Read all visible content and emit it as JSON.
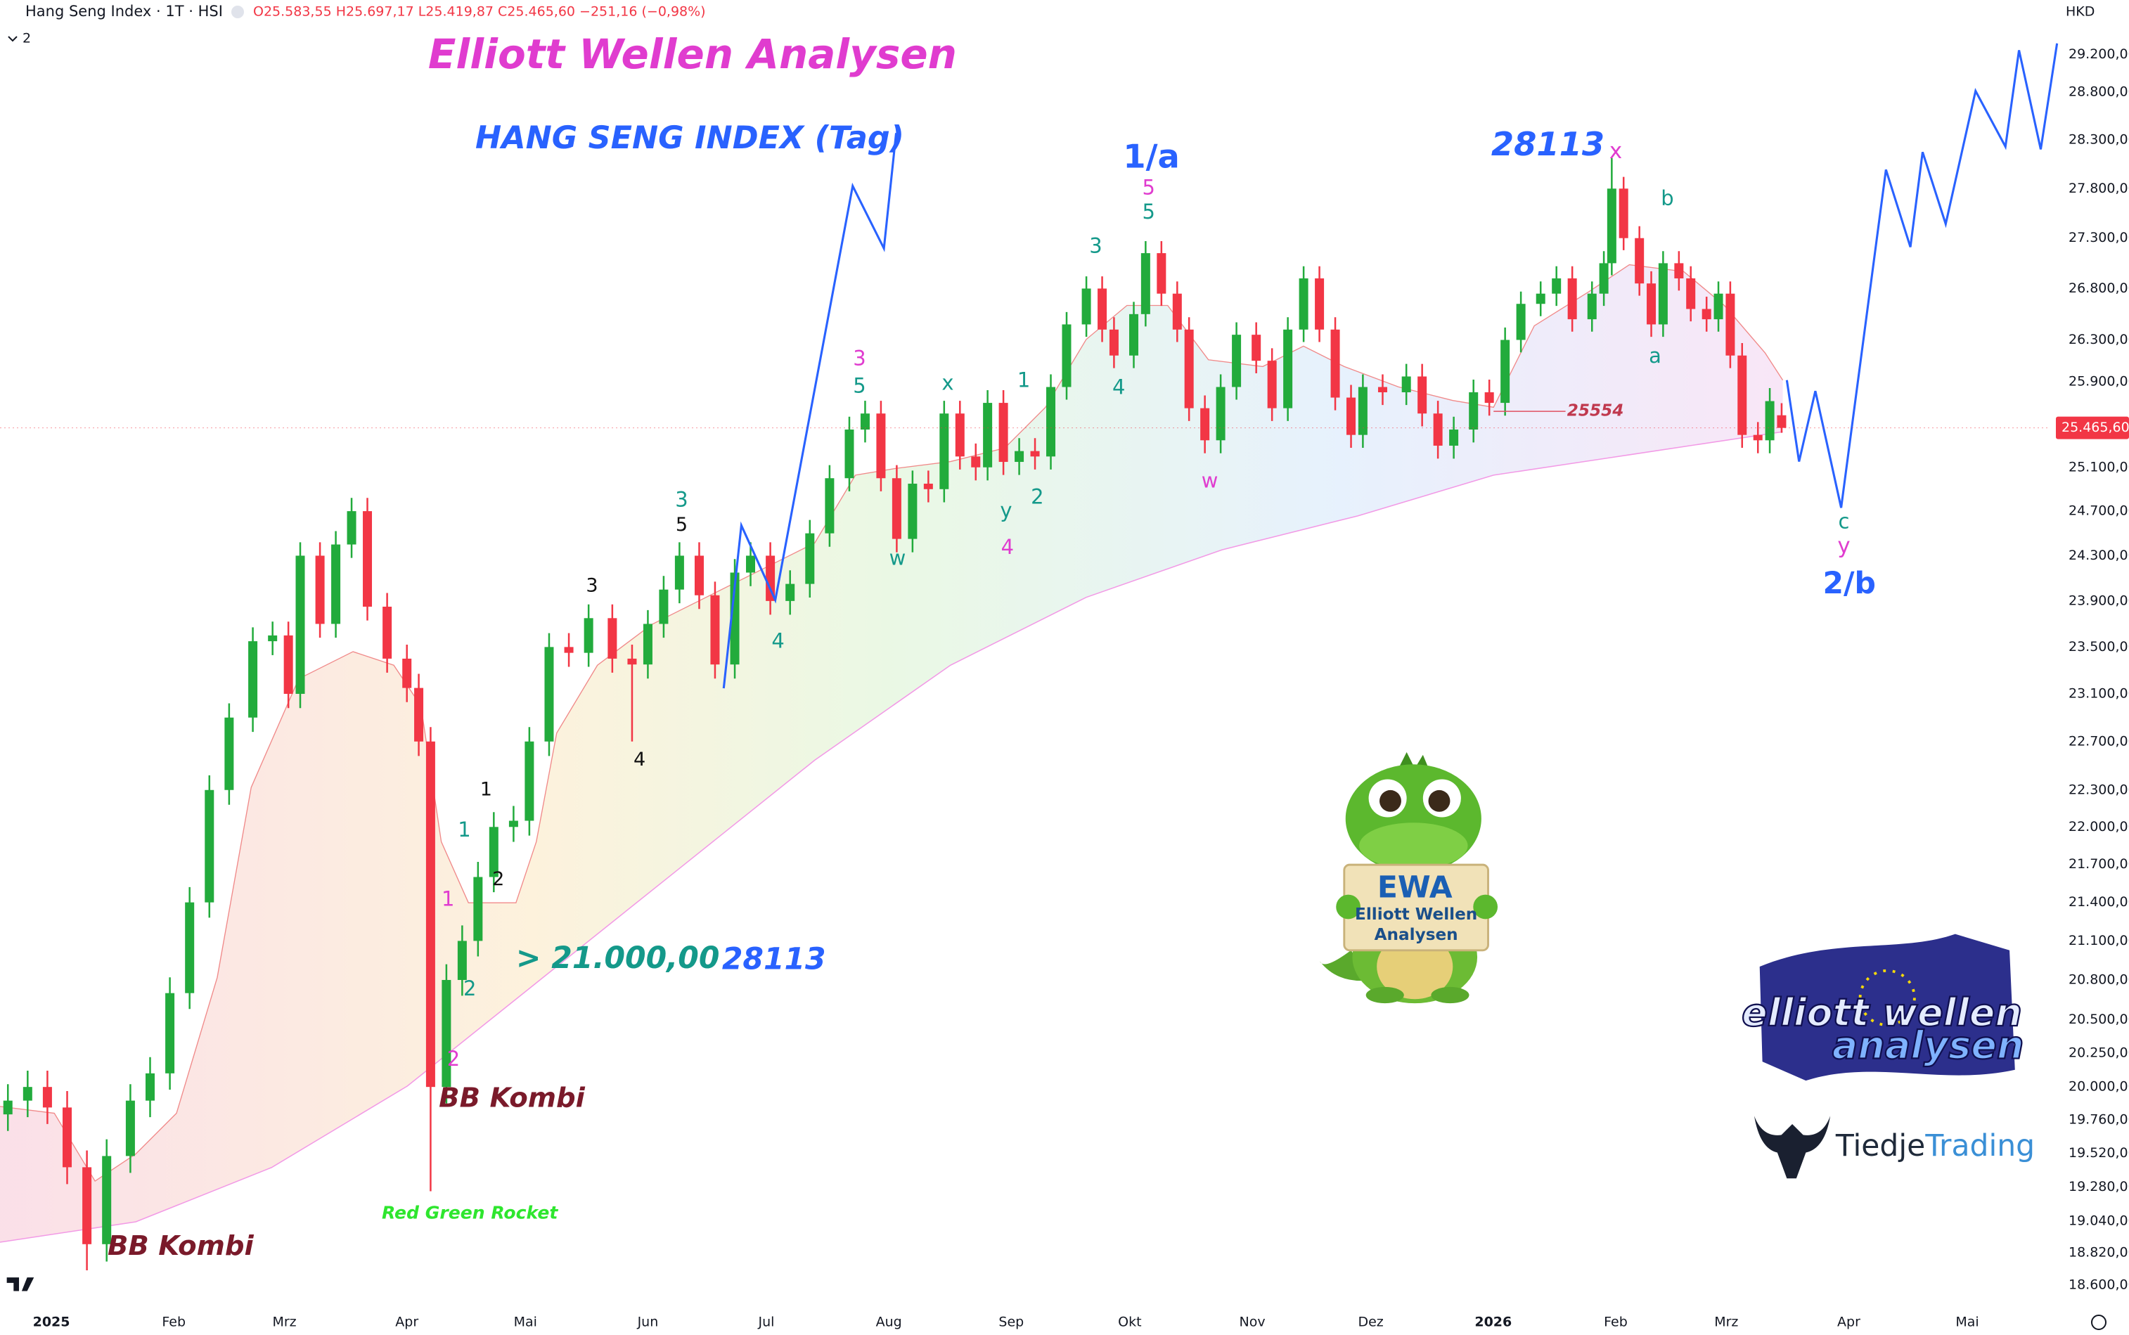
{
  "header": {
    "symbol": "Hang Seng Index · 1T · HSI",
    "ohlc": "O25.583,55 H25.697,17 L25.419,87 C25.465,60 −251,16 (−0,98%)",
    "currency": "HKD",
    "indicators": "2"
  },
  "chart_data": {
    "type": "candlestick",
    "x": [
      -11,
      -6,
      -1,
      4,
      9,
      14,
      20,
      25,
      30,
      35,
      40,
      45,
      51,
      56,
      60,
      63,
      68,
      72,
      76,
      80,
      85,
      90,
      93,
      96,
      100,
      104,
      108,
      112,
      117,
      121,
      126,
      131,
      136,
      142,
      147,
      151,
      155,
      159,
      164,
      168,
      173,
      177,
      182,
      187,
      192,
      197,
      202,
      206,
      210,
      214,
      218,
      222,
      226,
      230,
      234,
      237,
      241,
      245,
      249,
      253,
      257,
      262,
      266,
      269,
      274,
      277,
      281,
      285,
      288,
      292,
      296,
      300,
      305,
      309,
      313,
      317,
      321,
      325,
      329,
      332,
      337,
      343,
      347,
      351,
      355,
      360,
      364,
      368,
      372,
      377,
      381,
      385,
      390,
      393,
      395,
      398,
      402,
      405,
      408,
      412,
      415,
      419,
      422,
      425,
      428,
      432,
      435,
      438
    ],
    "open": [
      19800,
      19900,
      20000,
      19850,
      19420,
      18880,
      19500,
      19900,
      20100,
      20700,
      21400,
      22300,
      22900,
      23550,
      23600,
      23100,
      24300,
      23700,
      24400,
      24700,
      23850,
      23400,
      23150,
      22700,
      20000,
      20800,
      21100,
      21600,
      22000,
      22050,
      22700,
      23500,
      23450,
      23750,
      23400,
      23350,
      23700,
      24000,
      24300,
      23950,
      23350,
      24150,
      24300,
      23900,
      24050,
      24500,
      25000,
      25450,
      25600,
      25000,
      24450,
      24950,
      24900,
      25600,
      25200,
      25100,
      25700,
      25150,
      25250,
      25200,
      25850,
      26450,
      26800,
      26400,
      26150,
      26550,
      27150,
      26750,
      26400,
      25650,
      25350,
      25850,
      26350,
      26100,
      25650,
      26400,
      26900,
      26400,
      25750,
      25400,
      25850,
      25800,
      25950,
      25600,
      25300,
      25450,
      25800,
      25700,
      26300,
      26650,
      26750,
      26900,
      26500,
      26750,
      27050,
      27800,
      27300,
      26850,
      26450,
      27050,
      26900,
      26600,
      26500,
      26750,
      26150,
      25400,
      25350,
      25583.55
    ],
    "high": [
      20020,
      20120,
      20120,
      19970,
      19540,
      19620,
      20020,
      20220,
      20820,
      21520,
      22420,
      23020,
      23670,
      23720,
      23720,
      24420,
      24420,
      24520,
      24820,
      24820,
      23970,
      23520,
      23270,
      22820,
      20920,
      21220,
      21720,
      22120,
      22170,
      22820,
      23620,
      23620,
      23870,
      23870,
      23520,
      23820,
      24120,
      24420,
      24420,
      24070,
      24270,
      24420,
      24420,
      24170,
      24620,
      25120,
      25570,
      25720,
      25720,
      25120,
      25070,
      25070,
      25720,
      25720,
      25320,
      25820,
      25820,
      25370,
      25370,
      25970,
      26570,
      26920,
      26920,
      26520,
      26670,
      27270,
      27270,
      26870,
      26520,
      25770,
      25970,
      26470,
      26470,
      26220,
      26520,
      27020,
      27020,
      26520,
      25870,
      25970,
      25970,
      26070,
      26070,
      25720,
      25570,
      25920,
      25920,
      26420,
      26770,
      26870,
      27020,
      27020,
      26870,
      27170,
      28113,
      27920,
      27420,
      26970,
      27170,
      27170,
      27020,
      26720,
      26870,
      26870,
      26270,
      25520,
      25840,
      25697.17
    ],
    "low": [
      19680,
      19780,
      19730,
      19300,
      18700,
      18760,
      19380,
      19780,
      19980,
      20580,
      21280,
      22180,
      22780,
      23430,
      22980,
      22980,
      23580,
      23580,
      24280,
      23730,
      23280,
      23030,
      22580,
      19250,
      19880,
      20680,
      20980,
      21480,
      21880,
      21930,
      22580,
      23330,
      23330,
      23280,
      22700,
      23230,
      23580,
      23880,
      23830,
      23230,
      23230,
      24030,
      23780,
      23780,
      23930,
      24380,
      24880,
      25330,
      24880,
      24330,
      24330,
      24780,
      24780,
      25080,
      24980,
      24980,
      25030,
      25030,
      25080,
      25080,
      25730,
      26330,
      26280,
      26030,
      26030,
      26430,
      26630,
      26280,
      25530,
      25230,
      25230,
      25730,
      25980,
      25530,
      25530,
      26280,
      26280,
      25630,
      25280,
      25280,
      25680,
      25680,
      25480,
      25180,
      25180,
      25330,
      25580,
      25580,
      26180,
      26530,
      26630,
      26380,
      26380,
      26630,
      26930,
      27180,
      26730,
      26330,
      26330,
      26780,
      26480,
      26380,
      26380,
      26030,
      25280,
      25230,
      25230,
      25419.87
    ],
    "close": [
      19900,
      20000,
      19850,
      19420,
      18880,
      19500,
      19900,
      20100,
      20700,
      21400,
      22300,
      22900,
      23550,
      23600,
      23100,
      24300,
      23700,
      24400,
      24700,
      23850,
      23400,
      23150,
      22700,
      20000,
      20800,
      21100,
      21600,
      22000,
      22050,
      22700,
      23500,
      23450,
      23750,
      23400,
      23350,
      23700,
      24000,
      24300,
      23950,
      23350,
      24150,
      24300,
      23900,
      24050,
      24500,
      25000,
      25450,
      25600,
      25000,
      24450,
      24950,
      24900,
      25600,
      25200,
      25100,
      25700,
      25150,
      25250,
      25200,
      25850,
      26450,
      26800,
      26400,
      26150,
      26550,
      27150,
      26750,
      26400,
      25650,
      25350,
      25850,
      26350,
      26100,
      25650,
      26400,
      26900,
      26400,
      25750,
      25400,
      25850,
      25800,
      25950,
      25600,
      25300,
      25450,
      25800,
      25700,
      26300,
      26650,
      26750,
      26900,
      26500,
      26750,
      27050,
      27800,
      27300,
      26850,
      26450,
      27050,
      26900,
      26600,
      26500,
      26750,
      26150,
      25400,
      25350,
      25716.76,
      25465.6
    ],
    "up_color": "#22ab3c",
    "down_color": "#f23645",
    "xlim": [
      -13,
      506
    ],
    "xticks": [
      {
        "value": 0,
        "label": "2025"
      },
      {
        "value": 31,
        "label": "Feb"
      },
      {
        "value": 59,
        "label": "Mrz"
      },
      {
        "value": 90,
        "label": "Apr"
      },
      {
        "value": 120,
        "label": "Mai"
      },
      {
        "value": 151,
        "label": "Jun"
      },
      {
        "value": 181,
        "label": "Jul"
      },
      {
        "value": 212,
        "label": "Aug"
      },
      {
        "value": 243,
        "label": "Sep"
      },
      {
        "value": 273,
        "label": "Okt"
      },
      {
        "value": 304,
        "label": "Nov"
      },
      {
        "value": 334,
        "label": "Dez"
      },
      {
        "value": 365,
        "label": "2026"
      },
      {
        "value": 396,
        "label": "Feb"
      },
      {
        "value": 424,
        "label": "Mrz"
      },
      {
        "value": 455,
        "label": "Apr"
      },
      {
        "value": 485,
        "label": "Mai"
      }
    ],
    "ylim": [
      18470,
      29790
    ],
    "log_scale": true,
    "grid": false,
    "yticks": [
      {
        "value": 29200,
        "label": "29.200,00"
      },
      {
        "value": 28800,
        "label": "28.800,00"
      },
      {
        "value": 28300,
        "label": "28.300,00"
      },
      {
        "value": 27800,
        "label": "27.800,00"
      },
      {
        "value": 27300,
        "label": "27.300,00"
      },
      {
        "value": 26800,
        "label": "26.800,00"
      },
      {
        "value": 26300,
        "label": "26.300,00"
      },
      {
        "value": 25900,
        "label": "25.900,00"
      },
      {
        "value": 25100,
        "label": "25.100,00"
      },
      {
        "value": 24700,
        "label": "24.700,00"
      },
      {
        "value": 24300,
        "label": "24.300,00"
      },
      {
        "value": 23900,
        "label": "23.900,00"
      },
      {
        "value": 23500,
        "label": "23.500,00"
      },
      {
        "value": 23100,
        "label": "23.100,00"
      },
      {
        "value": 22700,
        "label": "22.700,00"
      },
      {
        "value": 22300,
        "label": "22.300,00"
      },
      {
        "value": 22000,
        "label": "22.000,00"
      },
      {
        "value": 21700,
        "label": "21.700,00"
      },
      {
        "value": 21400,
        "label": "21.400,00"
      },
      {
        "value": 21100,
        "label": "21.100,00"
      },
      {
        "value": 20800,
        "label": "20.800,00"
      },
      {
        "value": 20500,
        "label": "20.500,00"
      },
      {
        "value": 20250,
        "label": "20.250,00"
      },
      {
        "value": 20000,
        "label": "20.000,00"
      },
      {
        "value": 19760,
        "label": "19.760,00"
      },
      {
        "value": 19520,
        "label": "19.520,00"
      },
      {
        "value": 19280,
        "label": "19.280,00"
      },
      {
        "value": 19040,
        "label": "19.040,00"
      },
      {
        "value": 18820,
        "label": "18.820,00"
      },
      {
        "value": 18600,
        "label": "18.600,00"
      }
    ],
    "price_label": "25.465,60",
    "annotations": [
      "Elliott Wellen Analysen",
      "HANG SENG INDEX (Tag)",
      "1/a",
      "5",
      "5",
      "28113",
      "x",
      "b",
      "a",
      "25554",
      "c",
      "y",
      "2/b",
      "3",
      "4",
      "1",
      "2",
      "x",
      "y",
      "4",
      "w",
      "3",
      "5",
      "4",
      "3",
      "5",
      "3",
      "4",
      "1",
      "1",
      "2",
      "1",
      "2",
      "2",
      "w",
      "> 21.000,00",
      "28113",
      "BB Kombi",
      "BB Kombi",
      "Red Green Rocket"
    ]
  },
  "logos": {
    "ewa": "EWA",
    "ewa_line1": "Elliott Wellen",
    "ewa_line2": "Analysen",
    "ew_word1": "elliott wellen",
    "ew_word2": "analysen",
    "tiedje1": "Tiedje",
    "tiedje2": "Trading"
  }
}
